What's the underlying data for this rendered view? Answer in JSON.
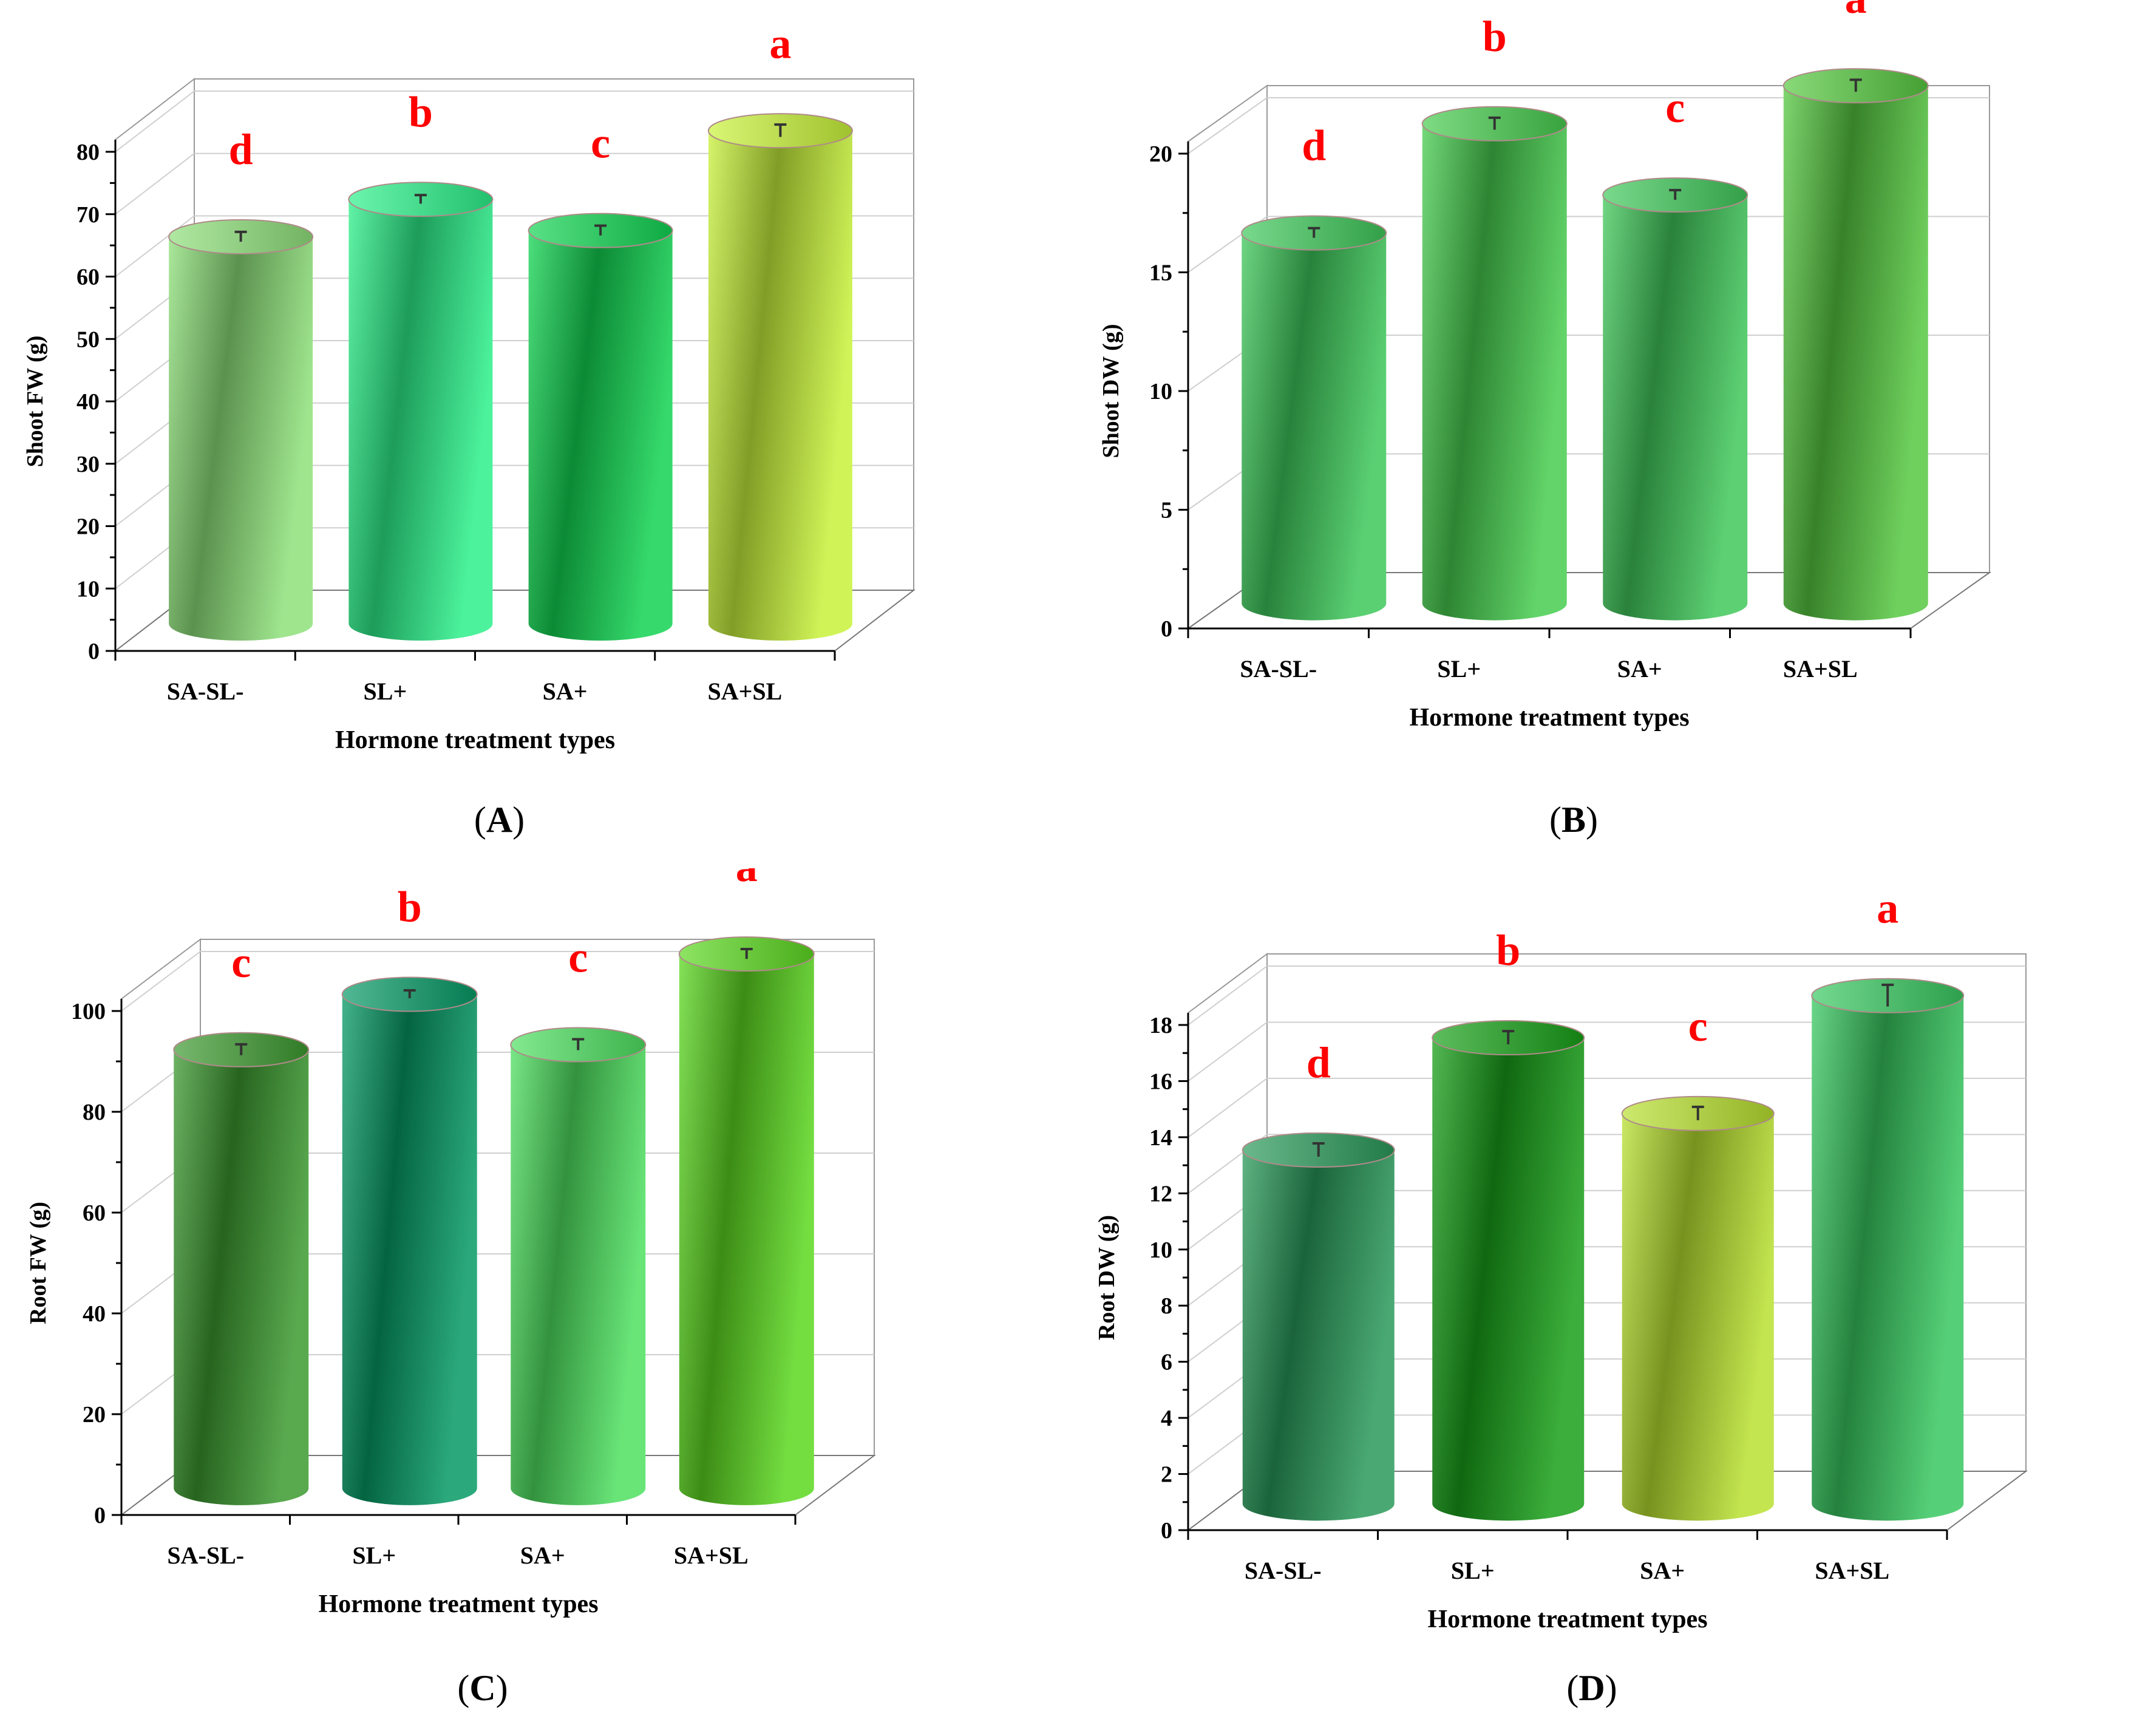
{
  "chart_data": [
    {
      "panel": "A",
      "type": "bar",
      "categories": [
        "SA-SL-",
        "SL+",
        "SA+",
        "SA+SL"
      ],
      "values": [
        62,
        68,
        63,
        79
      ],
      "errors": [
        0.4,
        0.3,
        0.4,
        0.6
      ],
      "letters": [
        "d",
        "b",
        "c",
        "a"
      ],
      "xlabel": "Hormone treatment types",
      "ylabel": "Shoot FW (g)",
      "ylim": [
        0,
        80
      ],
      "yticks": [
        0,
        10,
        20,
        30,
        40,
        50,
        60,
        70,
        80
      ],
      "caption_label": "A",
      "colors": [
        "#8ee07a",
        "#2cf08a",
        "#12d452",
        "#c8f23a"
      ],
      "grid": true
    },
    {
      "panel": "B",
      "type": "bar",
      "categories": [
        "SA-SL-",
        "SL+",
        "SA+",
        "SA+SL"
      ],
      "values": [
        15.6,
        20.2,
        17.2,
        21.8
      ],
      "errors": [
        0.1,
        0.15,
        0.1,
        0.15
      ],
      "letters": [
        "d",
        "b",
        "c",
        "a"
      ],
      "xlabel": "Hormone treatment types",
      "ylabel": "Shoot DW (g)",
      "ylim": [
        0,
        20
      ],
      "yticks": [
        0,
        5,
        10,
        15,
        20
      ],
      "caption_label": "B",
      "colors": [
        "#3ec85a",
        "#46cc4e",
        "#40c85a",
        "#56c840"
      ],
      "grid": true
    },
    {
      "panel": "C",
      "type": "bar",
      "categories": [
        "SA-SL-",
        "SL+",
        "SA+",
        "SA+SL"
      ],
      "values": [
        87,
        98,
        88,
        106
      ],
      "errors": [
        0.6,
        0.3,
        0.6,
        0.5
      ],
      "letters": [
        "c",
        "b",
        "c",
        "a"
      ],
      "xlabel": "Hormone treatment types",
      "ylabel": "Root FW (g)",
      "ylim": [
        0,
        100
      ],
      "yticks": [
        0,
        20,
        40,
        60,
        80,
        100
      ],
      "caption_label": "C",
      "colors": [
        "#3c9a30",
        "#069a66",
        "#4ee060",
        "#5cd820"
      ],
      "grid": true
    },
    {
      "panel": "D",
      "type": "bar",
      "categories": [
        "SA-SL-",
        "SL+",
        "SA+",
        "SA+SL"
      ],
      "values": [
        12.6,
        16.6,
        13.9,
        18.1
      ],
      "errors": [
        0.15,
        0.15,
        0.15,
        0.3
      ],
      "letters": [
        "d",
        "b",
        "c",
        "a"
      ],
      "xlabel": "Hormone treatment types",
      "ylabel": "Root DW (g)",
      "ylim": [
        0,
        18
      ],
      "yticks": [
        0,
        2,
        4,
        6,
        8,
        10,
        12,
        14,
        16,
        18
      ],
      "caption_label": "D",
      "colors": [
        "#2a9a5a",
        "#18a018",
        "#b8e030",
        "#38c860"
      ],
      "grid": true
    }
  ]
}
